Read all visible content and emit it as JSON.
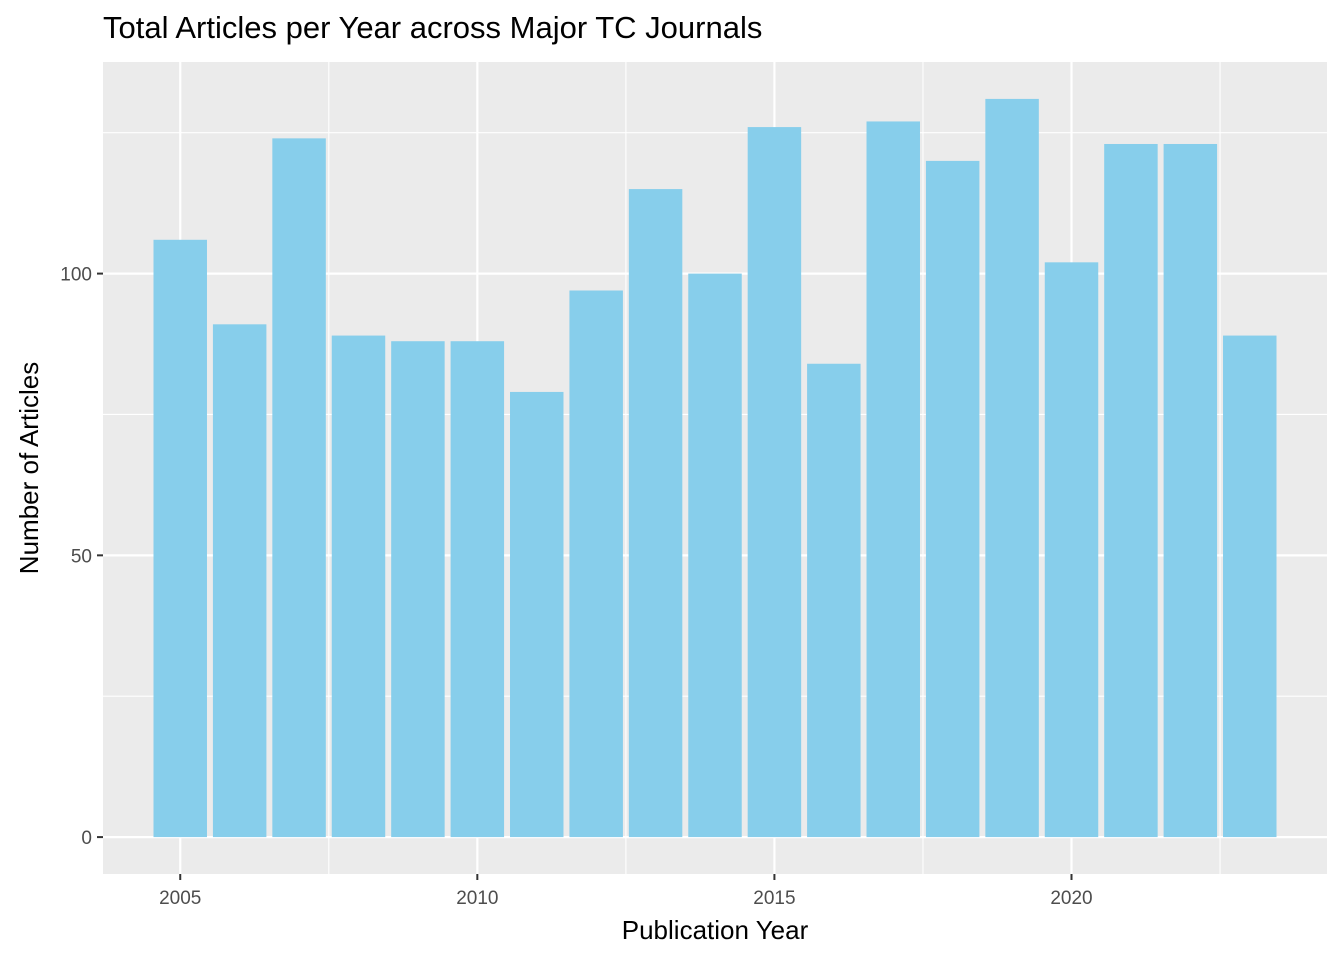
{
  "chart_data": {
    "type": "bar",
    "title": "Total Articles per Year across Major TC Journals",
    "xlabel": "Publication Year",
    "ylabel": "Number of Articles",
    "x": [
      2005,
      2006,
      2007,
      2008,
      2009,
      2010,
      2011,
      2012,
      2013,
      2014,
      2015,
      2016,
      2017,
      2018,
      2019,
      2020,
      2021,
      2022,
      2023
    ],
    "values": [
      106,
      91,
      124,
      89,
      88,
      88,
      79,
      97,
      115,
      100,
      126,
      84,
      127,
      120,
      131,
      102,
      123,
      123,
      89
    ],
    "xlim": [
      2003.7,
      2024.3
    ],
    "ylim": [
      -6.55,
      137.55
    ],
    "x_ticks": [
      2005,
      2010,
      2015,
      2020
    ],
    "x_tick_labels": [
      "2005",
      "2010",
      "2015",
      "2020"
    ],
    "y_ticks": [
      0,
      50,
      100
    ],
    "y_tick_labels": [
      "0",
      "50",
      "100"
    ],
    "grid": true,
    "colors": {
      "bar": "#87CEEB",
      "panel": "#EBEBEB",
      "grid": "#FFFFFF",
      "tick_text": "#4D4D4D"
    }
  }
}
